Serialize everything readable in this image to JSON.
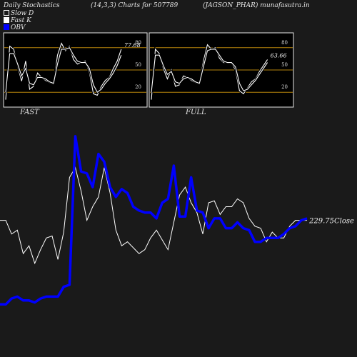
{
  "header": {
    "left": "Daily Stochastics",
    "center": "(14,3,3) Charts for 507789",
    "right": "(JAGSON_PHAR) munafasutra.in"
  },
  "legend": [
    {
      "label": "Slow  D",
      "swatch": "outline"
    },
    {
      "label": "Fast K",
      "swatch": "filled"
    },
    {
      "label": "OBV",
      "swatch": "blue"
    }
  ],
  "colors": {
    "background": "#1a1a1a",
    "level_line": "#b8860b",
    "obv": "#0000ff",
    "price": "#ffffff"
  },
  "chart_data": [
    {
      "type": "line",
      "name": "fast-stochastic",
      "caption": "FAST",
      "last_value_label": "77.68",
      "ylim": [
        0,
        100
      ],
      "levels": [
        20,
        50,
        80
      ],
      "tick_labels": [
        "80",
        "50",
        "20"
      ],
      "series": [
        {
          "role": "fast_k",
          "values": [
            10,
            82,
            78,
            55,
            35,
            62,
            24,
            28,
            46,
            40,
            36,
            33,
            31,
            70,
            86,
            76,
            82,
            64,
            58,
            60,
            62,
            47,
            18,
            16,
            28,
            36,
            40,
            52,
            62,
            78
          ]
        },
        {
          "role": "slow_d",
          "values": [
            20,
            72,
            72,
            58,
            42,
            52,
            32,
            30,
            40,
            40,
            38,
            34,
            32,
            58,
            78,
            78,
            80,
            70,
            62,
            60,
            60,
            52,
            30,
            20,
            24,
            32,
            38,
            46,
            56,
            70
          ]
        }
      ]
    },
    {
      "type": "line",
      "name": "full-stochastic",
      "caption": "FULL",
      "last_value_label": "63.66",
      "ylim": [
        0,
        100
      ],
      "levels": [
        20,
        50,
        80
      ],
      "tick_labels": [
        "80",
        "50",
        "20"
      ],
      "series": [
        {
          "role": "fast_k",
          "values": [
            10,
            78,
            72,
            52,
            38,
            50,
            28,
            30,
            42,
            40,
            36,
            33,
            31,
            62,
            84,
            78,
            80,
            66,
            60,
            60,
            60,
            50,
            22,
            18,
            26,
            34,
            38,
            48,
            56,
            64
          ]
        },
        {
          "role": "slow_d",
          "values": [
            20,
            70,
            70,
            56,
            44,
            48,
            34,
            32,
            38,
            40,
            38,
            34,
            32,
            54,
            76,
            78,
            78,
            70,
            62,
            60,
            60,
            54,
            32,
            22,
            24,
            30,
            36,
            44,
            52,
            60
          ]
        }
      ]
    },
    {
      "type": "line",
      "name": "price-and-obv",
      "close_label": "229.75",
      "close_suffix": "Close",
      "price": [
        263,
        263,
        256,
        258,
        246,
        250,
        241,
        248,
        254,
        255,
        243,
        257,
        285,
        290,
        278,
        263,
        270,
        275,
        290,
        277,
        258,
        250,
        252,
        249,
        246,
        248,
        254,
        258,
        253,
        248,
        262,
        276,
        280,
        272,
        267,
        256,
        272,
        273,
        266,
        270,
        270,
        274,
        272,
        264,
        260,
        259,
        252,
        257,
        254,
        254,
        260,
        263,
        263,
        263
      ],
      "obv": [
        220,
        220,
        223,
        224,
        222,
        222,
        221,
        223,
        224,
        224,
        224,
        229,
        230,
        306,
        288,
        287,
        280,
        297,
        293,
        280,
        275,
        279,
        277,
        270,
        268,
        267,
        267,
        264,
        272,
        274,
        291,
        265,
        265,
        285,
        268,
        267,
        259,
        264,
        264,
        259,
        259,
        262,
        259,
        258,
        252,
        252,
        254,
        254,
        254,
        256,
        259,
        260,
        263,
        264
      ]
    }
  ]
}
